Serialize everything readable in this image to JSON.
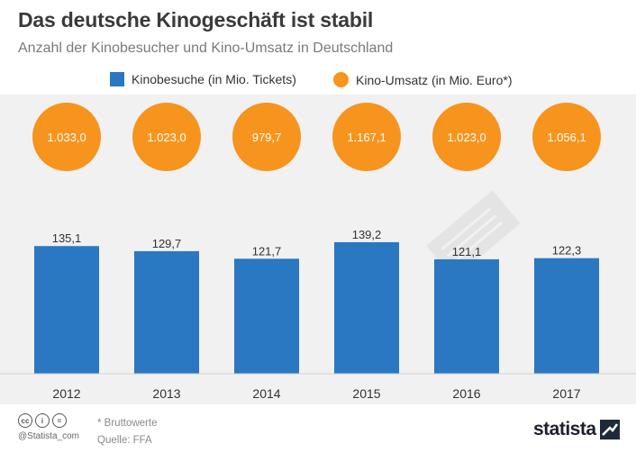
{
  "title": "Das deutsche Kinogeschäft ist stabil",
  "subtitle": "Anzahl der Kinobesucher und Kino-Umsatz in Deutschland",
  "legend": {
    "bar_label": "Kinobesuche (in Mio. Tickets)",
    "dot_label": "Kino-Umsatz (in Mio. Euro*)"
  },
  "colors": {
    "bar": "#2b78c2",
    "dot": "#f7941d",
    "background_panel": "#f1f1f1"
  },
  "chart_data": {
    "type": "bar",
    "categories": [
      "2012",
      "2013",
      "2014",
      "2015",
      "2016",
      "2017"
    ],
    "series": [
      {
        "name": "Kinobesuche (in Mio. Tickets)",
        "values": [
          135.1,
          129.7,
          121.7,
          139.2,
          121.1,
          122.3
        ],
        "labels": [
          "135,1",
          "129,7",
          "121,7",
          "139,2",
          "121,1",
          "122,3"
        ]
      },
      {
        "name": "Kino-Umsatz (in Mio. Euro*)",
        "values": [
          1033.0,
          1023.0,
          979.7,
          1167.1,
          1023.0,
          1056.1
        ],
        "labels": [
          "1.033,0",
          "1.023,0",
          "979,7",
          "1.167,1",
          "1.023,0",
          "1.056,1"
        ]
      }
    ],
    "ylim": [
      0,
      200
    ]
  },
  "footer": {
    "cc_icons": [
      "cc",
      "i",
      "="
    ],
    "handle": "@Statista_com",
    "note": "* Bruttowerte",
    "source": "Quelle: FFA",
    "brand": "statista"
  }
}
